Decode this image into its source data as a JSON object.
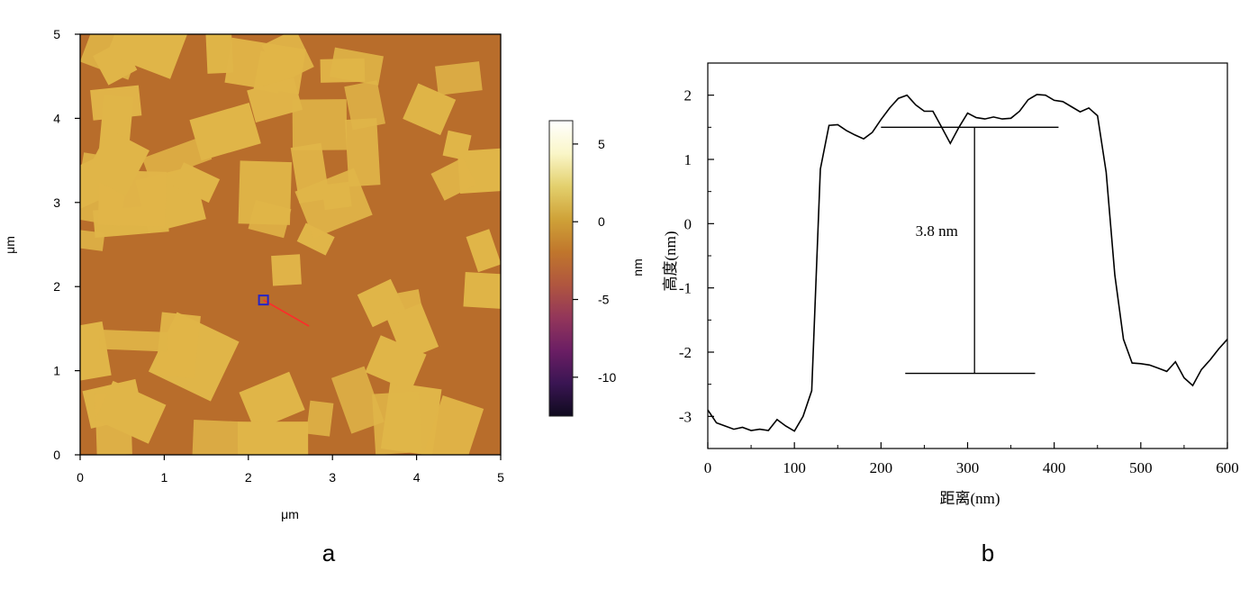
{
  "panel_a": {
    "label": "a",
    "xlabel": "μm",
    "ylabel": "μm",
    "colorbar": {
      "title": "nm",
      "ticks": [
        5,
        0,
        -5,
        -10
      ],
      "range": [
        -12.5,
        6.5
      ],
      "colors": [
        "#0f0a1e",
        "#3a1553",
        "#6b1e64",
        "#93365a",
        "#b0563f",
        "#c0762c",
        "#cfa238",
        "#e3d06d",
        "#faf6c8",
        "#ffffff"
      ]
    },
    "map": {
      "substrate_color": "#b86d2b",
      "flake_color": "#e0b548",
      "profile_line_color": "#ff2a2a",
      "marker_color": "#2424c8"
    }
  },
  "panel_b": {
    "label": "b",
    "annotation": "3.8 nm"
  },
  "chart_data": [
    {
      "type": "heatmap",
      "title": "",
      "xlabel": "μm",
      "ylabel": "μm",
      "xlim": [
        0,
        5
      ],
      "ylim": [
        0,
        5
      ],
      "xticks": [
        0,
        1,
        2,
        3,
        4,
        5
      ],
      "yticks": [
        0,
        1,
        2,
        3,
        4,
        5
      ],
      "colorbar_label": "nm",
      "colorbar_range": [
        -12.5,
        6.5
      ],
      "colorbar_ticks": [
        5,
        0,
        -5,
        -10
      ],
      "profile_line": {
        "x": [
          2.18,
          2.72
        ],
        "y": [
          1.84,
          1.53
        ]
      }
    },
    {
      "type": "line",
      "title": "",
      "xlabel": "距离(nm)",
      "ylabel": "高度(nm)",
      "xlim": [
        0,
        600
      ],
      "ylim": [
        -3.5,
        2.5
      ],
      "xticks": [
        0,
        100,
        200,
        300,
        400,
        500,
        600
      ],
      "yticks": [
        2,
        1,
        0,
        -1,
        -2,
        -3
      ],
      "x": [
        0,
        10,
        20,
        30,
        40,
        50,
        60,
        70,
        80,
        90,
        100,
        110,
        120,
        130,
        140,
        150,
        160,
        170,
        180,
        190,
        200,
        210,
        220,
        230,
        240,
        250,
        260,
        270,
        280,
        290,
        300,
        310,
        320,
        330,
        340,
        350,
        360,
        370,
        380,
        390,
        400,
        410,
        420,
        430,
        440,
        450,
        460,
        470,
        480,
        490,
        500,
        510,
        520,
        530,
        540,
        550,
        560,
        570,
        580,
        590,
        600
      ],
      "y": [
        -2.9,
        -3.1,
        -3.15,
        -3.2,
        -3.17,
        -3.22,
        -3.2,
        -3.22,
        -3.05,
        -3.15,
        -3.23,
        -3.0,
        -2.6,
        0.85,
        1.53,
        1.54,
        1.45,
        1.38,
        1.32,
        1.42,
        1.62,
        1.8,
        1.95,
        2.0,
        1.85,
        1.75,
        1.75,
        1.5,
        1.25,
        1.5,
        1.72,
        1.65,
        1.63,
        1.66,
        1.63,
        1.64,
        1.75,
        1.93,
        2.01,
        2.0,
        1.92,
        1.9,
        1.82,
        1.74,
        1.8,
        1.68,
        0.8,
        -0.8,
        -1.8,
        -2.17,
        -2.18,
        -2.2,
        -2.25,
        -2.3,
        -2.15,
        -2.4,
        -2.52,
        -2.27,
        -2.12,
        -1.95,
        -1.8
      ],
      "markers": {
        "top_level": 1.5,
        "top_xrange": [
          200,
          405
        ],
        "bottom_level": -2.33,
        "bottom_xrange": [
          228,
          378
        ],
        "vertical_x": 308
      },
      "annotation": "3.8 nm"
    }
  ]
}
